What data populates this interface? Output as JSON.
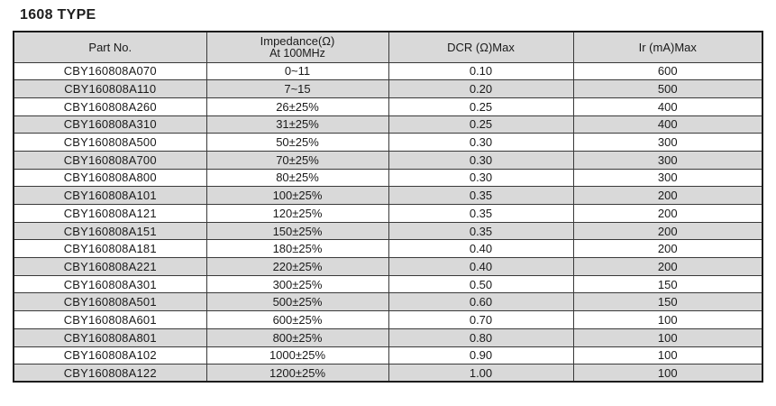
{
  "page": {
    "title": "1608 TYPE"
  },
  "colors": {
    "header_bg": "#d9d9d9",
    "row_alt_bg": "#d9d9d9",
    "border": "#3a3a3a",
    "outer_border": "#1c1c1c",
    "text": "#1a1a1a"
  },
  "table": {
    "columns": [
      {
        "label": "Part No.",
        "label2": ""
      },
      {
        "label": "Impedance(Ω)",
        "label2": "At 100MHz"
      },
      {
        "label": "DCR (Ω)Max",
        "label2": ""
      },
      {
        "label": "Ir (mA)Max",
        "label2": ""
      }
    ],
    "rows": [
      {
        "part_no": "CBY160808A070",
        "impedance": "0~11",
        "dcr": "0.10",
        "ir": "600"
      },
      {
        "part_no": "CBY160808A110",
        "impedance": "7~15",
        "dcr": "0.20",
        "ir": "500"
      },
      {
        "part_no": "CBY160808A260",
        "impedance": "26±25%",
        "dcr": "0.25",
        "ir": "400"
      },
      {
        "part_no": "CBY160808A310",
        "impedance": "31±25%",
        "dcr": "0.25",
        "ir": "400"
      },
      {
        "part_no": "CBY160808A500",
        "impedance": "50±25%",
        "dcr": "0.30",
        "ir": "300"
      },
      {
        "part_no": "CBY160808A700",
        "impedance": "70±25%",
        "dcr": "0.30",
        "ir": "300"
      },
      {
        "part_no": "CBY160808A800",
        "impedance": "80±25%",
        "dcr": "0.30",
        "ir": "300"
      },
      {
        "part_no": "CBY160808A101",
        "impedance": "100±25%",
        "dcr": "0.35",
        "ir": "200"
      },
      {
        "part_no": "CBY160808A121",
        "impedance": "120±25%",
        "dcr": "0.35",
        "ir": "200"
      },
      {
        "part_no": "CBY160808A151",
        "impedance": "150±25%",
        "dcr": "0.35",
        "ir": "200"
      },
      {
        "part_no": "CBY160808A181",
        "impedance": "180±25%",
        "dcr": "0.40",
        "ir": "200"
      },
      {
        "part_no": "CBY160808A221",
        "impedance": "220±25%",
        "dcr": "0.40",
        "ir": "200"
      },
      {
        "part_no": "CBY160808A301",
        "impedance": "300±25%",
        "dcr": "0.50",
        "ir": "150"
      },
      {
        "part_no": "CBY160808A501",
        "impedance": "500±25%",
        "dcr": "0.60",
        "ir": "150"
      },
      {
        "part_no": "CBY160808A601",
        "impedance": "600±25%",
        "dcr": "0.70",
        "ir": "100"
      },
      {
        "part_no": "CBY160808A801",
        "impedance": "800±25%",
        "dcr": "0.80",
        "ir": "100"
      },
      {
        "part_no": "CBY160808A102",
        "impedance": "1000±25%",
        "dcr": "0.90",
        "ir": "100"
      },
      {
        "part_no": "CBY160808A122",
        "impedance": "1200±25%",
        "dcr": "1.00",
        "ir": "100"
      }
    ]
  }
}
